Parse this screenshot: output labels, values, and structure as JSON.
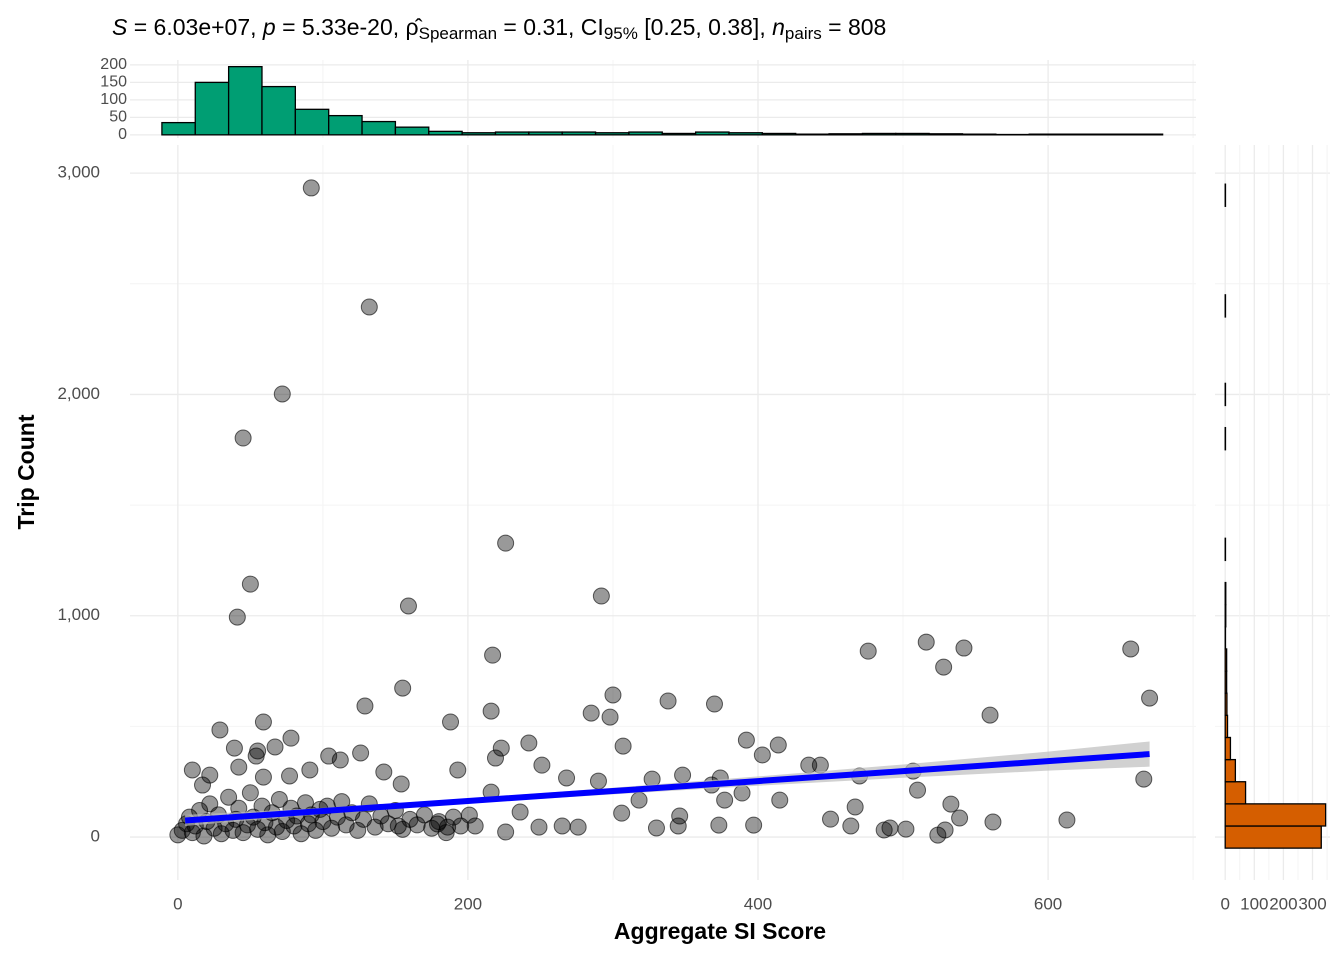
{
  "chart_data": [
    {
      "type": "scatter",
      "title_parts": [
        {
          "text": "S",
          "style": "italic"
        },
        {
          "text": " = 6.03e+07, ",
          "style": "normal"
        },
        {
          "text": "p",
          "style": "italic"
        },
        {
          "text": " = 5.33e-20, ",
          "style": "normal"
        },
        {
          "text": "ρ̂",
          "style": "normal"
        },
        {
          "text": "Spearman",
          "style": "sub"
        },
        {
          "text": " = 0.31, CI",
          "style": "normal"
        },
        {
          "text": "95%",
          "style": "sub"
        },
        {
          "text": " [0.25, 0.38], ",
          "style": "normal"
        },
        {
          "text": "n",
          "style": "italic"
        },
        {
          "text": "pairs",
          "style": "sub"
        },
        {
          "text": " = 808",
          "style": "normal"
        }
      ],
      "x_label": "Aggregate SI Score",
      "y_label": "Trip Count",
      "xlim": [
        -33,
        702
      ],
      "ylim": [
        -194,
        3127
      ],
      "xticks": [
        0,
        200,
        400,
        600
      ],
      "x_minor_ticks": [
        100,
        300,
        500,
        700
      ],
      "yticks": [
        0,
        {
          "value": 1000,
          "label": "1,000"
        },
        {
          "value": 2000,
          "label": "2,000"
        },
        {
          "value": 3000,
          "label": "3,000"
        }
      ],
      "y_minor_ticks": [
        500,
        1500,
        2500
      ],
      "grid": true,
      "point_color": "#000000",
      "x": [
        92,
        132,
        72,
        45,
        50,
        41,
        226,
        159,
        292,
        217,
        155,
        476,
        516,
        528,
        542,
        657,
        670,
        666,
        560,
        300,
        338,
        370,
        298,
        285,
        216,
        129,
        188,
        29,
        59,
        392,
        414,
        307,
        223,
        242,
        193,
        613,
        562,
        524,
        510,
        502,
        443,
        435,
        467,
        507,
        533,
        470,
        368,
        403,
        348,
        327,
        268,
        251,
        290,
        219,
        216,
        201,
        226,
        249,
        306,
        318,
        346,
        373,
        397,
        415,
        450,
        464,
        491,
        487,
        529,
        539,
        377,
        389,
        374,
        345,
        330,
        276,
        265,
        236,
        205,
        186,
        179,
        152,
        154,
        142,
        126,
        112,
        104,
        91,
        77,
        78,
        67,
        54,
        59,
        42,
        22,
        10,
        17,
        39,
        55,
        0,
        3,
        6,
        8,
        10,
        12,
        15,
        18,
        20,
        22,
        25,
        28,
        30,
        33,
        35,
        38,
        40,
        42,
        45,
        48,
        50,
        52,
        55,
        58,
        60,
        62,
        65,
        68,
        70,
        72,
        75,
        78,
        80,
        82,
        85,
        88,
        90,
        92,
        95,
        98,
        100,
        103,
        106,
        110,
        113,
        116,
        120,
        124,
        128,
        132,
        136,
        140,
        145,
        150,
        155,
        160,
        165,
        170,
        175,
        180,
        185,
        190,
        195
      ],
      "y": [
        2933,
        2395,
        2002,
        1803,
        1143,
        994,
        1328,
        1044,
        1089,
        822,
        673,
        840,
        881,
        768,
        854,
        850,
        628,
        262,
        551,
        642,
        615,
        601,
        542,
        560,
        569,
        592,
        520,
        484,
        520,
        438,
        416,
        411,
        402,
        425,
        303,
        77,
        68,
        9,
        212,
        36,
        325,
        325,
        136,
        298,
        149,
        276,
        235,
        371,
        280,
        262,
        267,
        325,
        253,
        357,
        203,
        99,
        23,
        45,
        108,
        167,
        95,
        54,
        54,
        167,
        81,
        50,
        41,
        32,
        32,
        86,
        167,
        199,
        267,
        50,
        41,
        45,
        50,
        113,
        50,
        45,
        59,
        50,
        240,
        294,
        380,
        348,
        366,
        303,
        276,
        447,
        407,
        366,
        271,
        316,
        280,
        303,
        235,
        402,
        389,
        10,
        30,
        60,
        90,
        20,
        50,
        120,
        5,
        70,
        150,
        40,
        100,
        15,
        60,
        180,
        30,
        80,
        130,
        20,
        55,
        200,
        90,
        35,
        140,
        65,
        10,
        110,
        45,
        170,
        25,
        75,
        130,
        50,
        95,
        15,
        155,
        60,
        100,
        30,
        125,
        70,
        140,
        40,
        90,
        160,
        55,
        110,
        30,
        80,
        150,
        45,
        95,
        60,
        120,
        35,
        80,
        55,
        100,
        40,
        70,
        20,
        90,
        50
      ],
      "smooth": {
        "color": "#0000ff",
        "band_color": "#bebebe",
        "x": [
          5,
          100,
          200,
          300,
          400,
          500,
          600,
          670
        ],
        "y": [
          75,
          118,
          163,
          208,
          253,
          298,
          343,
          375
        ],
        "lower": [
          50,
          104,
          152,
          193,
          232,
          268,
          300,
          318
        ],
        "upper": [
          100,
          132,
          174,
          223,
          274,
          328,
          386,
          432
        ]
      }
    },
    {
      "type": "histogram",
      "orientation": "vertical",
      "color": "#009e73",
      "bins": [
        -11,
        12,
        35,
        58,
        81,
        104,
        127,
        150,
        173,
        196,
        219,
        242,
        265,
        288,
        311,
        334,
        357,
        380,
        403,
        426,
        449,
        472,
        495,
        518,
        541,
        564,
        587,
        610,
        633,
        656,
        679
      ],
      "values": [
        35,
        150,
        195,
        138,
        73,
        55,
        38,
        22,
        10,
        6,
        8,
        8,
        8,
        6,
        8,
        4,
        8,
        6,
        4,
        2,
        3,
        4,
        4,
        3,
        2,
        1,
        2,
        2,
        2,
        2
      ],
      "ylim": [
        -9,
        214
      ],
      "yticks": [
        0,
        50,
        100,
        150,
        200
      ],
      "grid": true
    },
    {
      "type": "histogram",
      "orientation": "horizontal",
      "color": "#d55e00",
      "bins": [
        -50,
        50,
        150,
        250,
        350,
        450,
        550,
        650,
        750,
        850,
        950,
        1050,
        1150,
        1250,
        1350,
        1450,
        1550,
        1650,
        1750,
        1850,
        1950,
        2050,
        2150,
        2250,
        2350,
        2450,
        2550,
        2650,
        2750,
        2850,
        2950
      ],
      "values": [
        330,
        345,
        70,
        35,
        18,
        8,
        6,
        5,
        5,
        1,
        2,
        2,
        0,
        1,
        0,
        0,
        0,
        0,
        1,
        0,
        1,
        0,
        0,
        0,
        1,
        0,
        0,
        0,
        0,
        1
      ],
      "xlim": [
        -35,
        360
      ],
      "xticks": [
        0,
        100,
        200,
        300
      ],
      "x_minor_ticks": [
        50,
        150,
        250,
        350
      ],
      "grid": true
    }
  ]
}
